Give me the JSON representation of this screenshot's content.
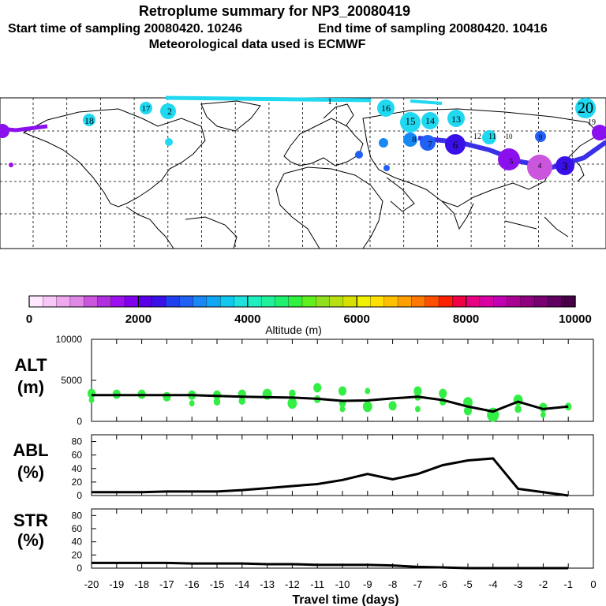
{
  "header": {
    "title": "Retroplume summary for NP3_20080419",
    "start_label": "Start time of sampling 20080420. 10246",
    "end_label": "End time of sampling 20080420. 10416",
    "met_label": "Meteorological data used is ECMWF"
  },
  "map": {
    "plume_labels": [
      "20",
      "19",
      "18",
      "17",
      "16",
      "15",
      "14",
      "13",
      "12",
      "11",
      "10",
      "9",
      "8",
      "7",
      "6",
      "5",
      "4",
      "3",
      "2",
      "1"
    ]
  },
  "colorbar": {
    "ticks": [
      "0",
      "2000",
      "4000",
      "6000",
      "8000",
      "10000"
    ],
    "label": "Altitude (m)",
    "colors": [
      "#ffe8ff",
      "#f7c8f7",
      "#eea8ee",
      "#e088e6",
      "#cc55dd",
      "#b030e0",
      "#9a10ee",
      "#8000f0",
      "#5a00e8",
      "#3a10e8",
      "#2040f0",
      "#2060f5",
      "#1888f5",
      "#10a8f5",
      "#10c8f0",
      "#20e0e0",
      "#20f0c0",
      "#20f098",
      "#20f070",
      "#30f040",
      "#60f020",
      "#90e020",
      "#b8e010",
      "#d8e000",
      "#f0f000",
      "#ffe000",
      "#ffc000",
      "#ffa000",
      "#ff7800",
      "#ff5000",
      "#ff2000",
      "#f00040",
      "#e80080",
      "#d800a0",
      "#c000b0",
      "#a80090",
      "#900080",
      "#780070",
      "#600060",
      "#480048"
    ]
  },
  "colors": {
    "alt_markers": "#33ee44",
    "line": "#000000"
  },
  "chart_data": [
    {
      "type": "line",
      "panel": "ALT",
      "ylabel": "ALT (m)",
      "ylabel_lines": [
        "ALT",
        "(m)"
      ],
      "ylim": [
        0,
        10000
      ],
      "yticks": [
        "10000",
        "5000",
        "0"
      ],
      "x": [
        -20,
        -19,
        -18,
        -17,
        -16,
        -15,
        -14,
        -13,
        -12,
        -11,
        -10,
        -9,
        -8,
        -7,
        -6,
        -5,
        -4,
        -3,
        -2,
        -1
      ],
      "values": [
        3200,
        3200,
        3200,
        3200,
        3200,
        3100,
        3000,
        2950,
        2900,
        2750,
        2500,
        2550,
        2800,
        3000,
        2600,
        1800,
        1200,
        2400,
        1500,
        1800
      ],
      "markers": [
        {
          "x": -20,
          "y": 3400,
          "r": 6
        },
        {
          "x": -20,
          "y": 2600,
          "r": 4
        },
        {
          "x": -19,
          "y": 3300,
          "r": 6
        },
        {
          "x": -18,
          "y": 3300,
          "r": 6
        },
        {
          "x": -17,
          "y": 3000,
          "r": 6
        },
        {
          "x": -16,
          "y": 3200,
          "r": 6
        },
        {
          "x": -16,
          "y": 2200,
          "r": 4
        },
        {
          "x": -15,
          "y": 3200,
          "r": 6
        },
        {
          "x": -15,
          "y": 2400,
          "r": 5
        },
        {
          "x": -14,
          "y": 3300,
          "r": 6
        },
        {
          "x": -14,
          "y": 2500,
          "r": 5
        },
        {
          "x": -13,
          "y": 3300,
          "r": 7
        },
        {
          "x": -12,
          "y": 3400,
          "r": 5
        },
        {
          "x": -12,
          "y": 2200,
          "r": 7
        },
        {
          "x": -11,
          "y": 4100,
          "r": 6
        },
        {
          "x": -11,
          "y": 2700,
          "r": 5
        },
        {
          "x": -10,
          "y": 3700,
          "r": 6
        },
        {
          "x": -10,
          "y": 2200,
          "r": 5
        },
        {
          "x": -10,
          "y": 1500,
          "r": 4
        },
        {
          "x": -9,
          "y": 3700,
          "r": 4
        },
        {
          "x": -9,
          "y": 1800,
          "r": 7
        },
        {
          "x": -8,
          "y": 1900,
          "r": 6
        },
        {
          "x": -7,
          "y": 3700,
          "r": 6
        },
        {
          "x": -7,
          "y": 3000,
          "r": 5
        },
        {
          "x": -7,
          "y": 1500,
          "r": 4
        },
        {
          "x": -6,
          "y": 3400,
          "r": 6
        },
        {
          "x": -6,
          "y": 2400,
          "r": 5
        },
        {
          "x": -5,
          "y": 2300,
          "r": 7
        },
        {
          "x": -5,
          "y": 1300,
          "r": 6
        },
        {
          "x": -4,
          "y": 800,
          "r": 9
        },
        {
          "x": -3,
          "y": 2600,
          "r": 7
        },
        {
          "x": -3,
          "y": 1500,
          "r": 5
        },
        {
          "x": -2,
          "y": 1700,
          "r": 6
        },
        {
          "x": -2,
          "y": 800,
          "r": 4
        },
        {
          "x": -1,
          "y": 1800,
          "r": 5
        }
      ]
    },
    {
      "type": "line",
      "panel": "ABL",
      "ylabel": "ABL (%)",
      "ylabel_lines": [
        "ABL",
        "(%)"
      ],
      "ylim": [
        0,
        90
      ],
      "yticks": [
        "80",
        "60",
        "40",
        "20",
        "0"
      ],
      "x": [
        -20,
        -19,
        -18,
        -17,
        -16,
        -15,
        -14,
        -13,
        -12,
        -11,
        -10,
        -9,
        -8,
        -7,
        -6,
        -5,
        -4,
        -3,
        -2,
        -1
      ],
      "values": [
        5,
        5,
        5,
        6,
        6,
        6,
        8,
        11,
        14,
        17,
        23,
        32,
        24,
        32,
        45,
        52,
        55,
        10,
        5,
        0
      ]
    },
    {
      "type": "line",
      "panel": "STR",
      "ylabel": "STR (%)",
      "ylabel_lines": [
        "STR",
        "(%)"
      ],
      "ylim": [
        0,
        90
      ],
      "yticks": [
        "80",
        "60",
        "40",
        "20",
        "0"
      ],
      "x": [
        -20,
        -19,
        -18,
        -17,
        -16,
        -15,
        -14,
        -13,
        -12,
        -11,
        -10,
        -9,
        -8,
        -7,
        -6,
        -5,
        -4,
        -3,
        -2,
        -1
      ],
      "values": [
        8,
        8,
        8,
        8,
        7,
        7,
        7,
        6,
        6,
        5,
        5,
        5,
        4,
        2,
        1,
        0,
        0,
        0,
        0,
        0
      ]
    },
    {
      "type": "axis",
      "xlabel": "Travel time (days)",
      "xticks": [
        "-20",
        "-19",
        "-18",
        "-17",
        "-16",
        "-15",
        "-14",
        "-13",
        "-12",
        "-11",
        "-10",
        "-9",
        "-8",
        "-7",
        "-6",
        "-5",
        "-4",
        "-3",
        "-2",
        "-1",
        "0"
      ],
      "xlim": [
        -20,
        0
      ]
    }
  ]
}
